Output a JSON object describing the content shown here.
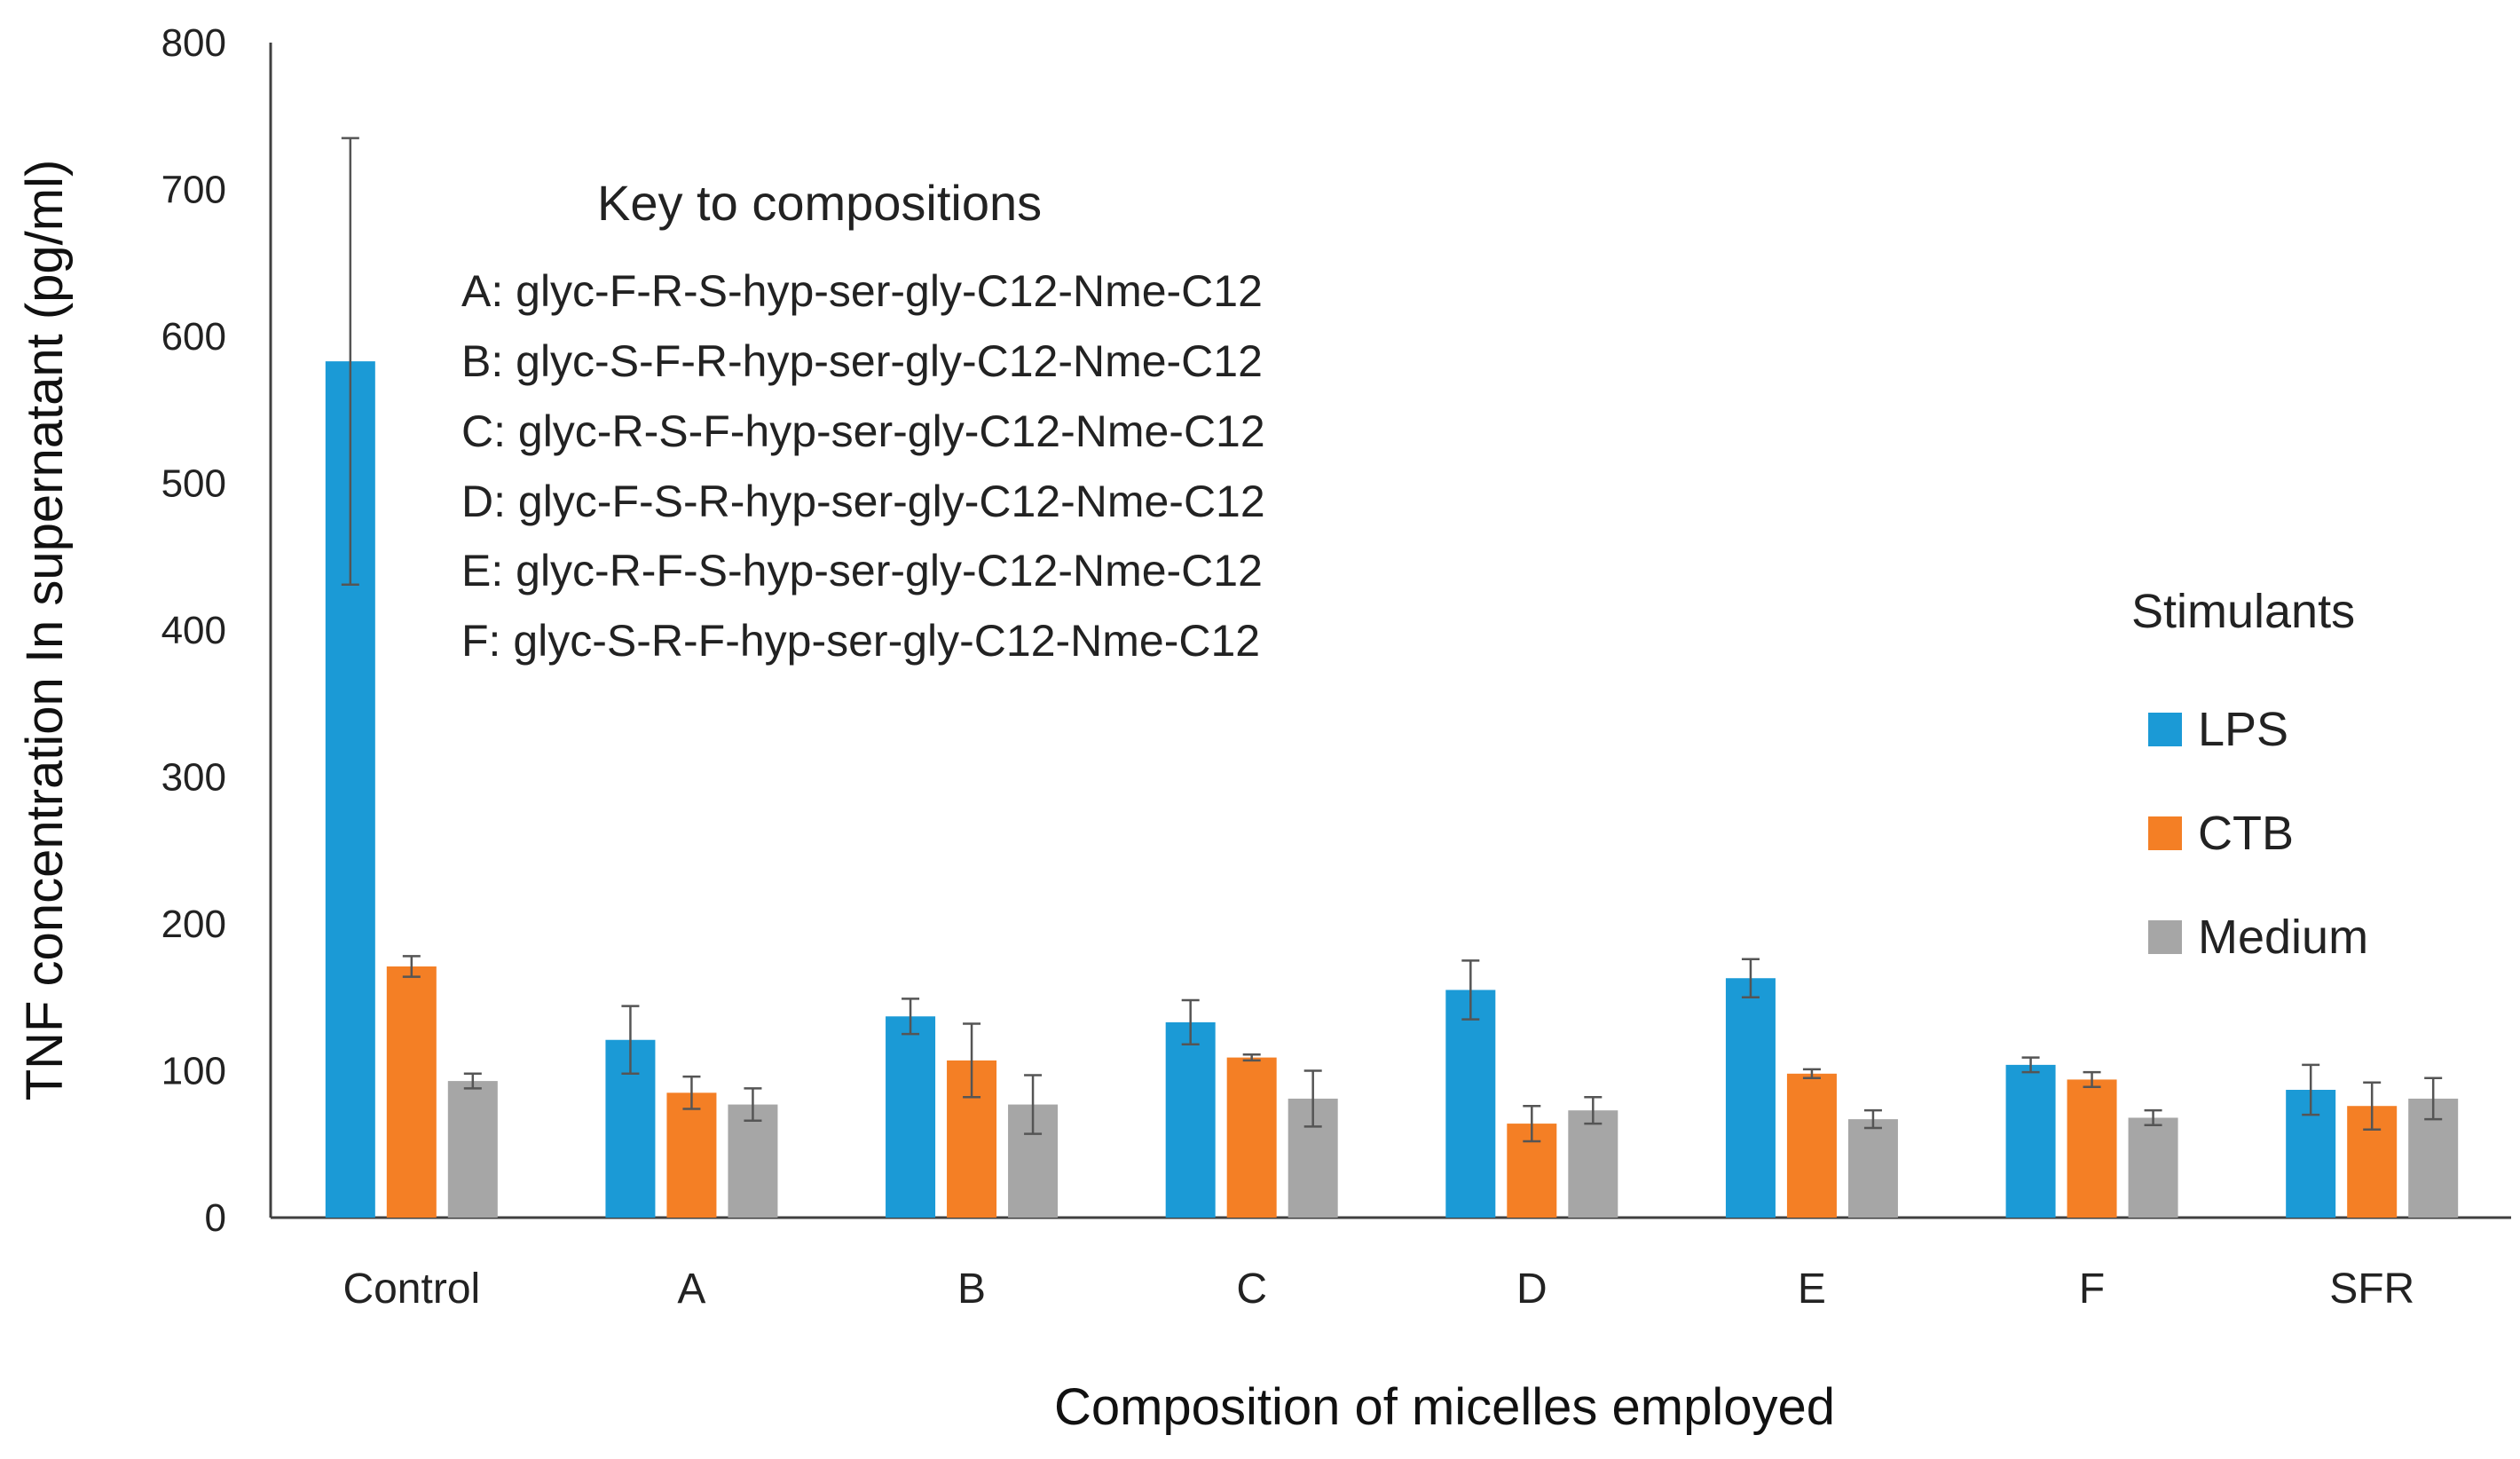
{
  "chart_data": {
    "type": "bar",
    "title": "",
    "xlabel": "Composition of micelles employed",
    "ylabel": "TNF concentration In supernatant  (pg/ml)",
    "ylim": [
      0,
      800
    ],
    "yticks": [
      0,
      100,
      200,
      300,
      400,
      500,
      600,
      700,
      800
    ],
    "grid": false,
    "legend_position": "right",
    "categories": [
      "Control",
      "A",
      "B",
      "C",
      "D",
      "E",
      "F",
      "SFR"
    ],
    "series": [
      {
        "name": "LPS",
        "color": "#1b9ad6",
        "values": [
          583,
          121,
          137,
          133,
          155,
          163,
          104,
          87
        ],
        "errors": [
          152,
          23,
          12,
          15,
          20,
          13,
          5,
          17
        ]
      },
      {
        "name": "CTB",
        "color": "#f47f25",
        "values": [
          171,
          85,
          107,
          109,
          64,
          98,
          94,
          76
        ],
        "errors": [
          7,
          11,
          25,
          2,
          12,
          3,
          5,
          16
        ]
      },
      {
        "name": "Medium",
        "color": "#a6a6a6",
        "values": [
          93,
          77,
          77,
          81,
          73,
          67,
          68,
          81
        ],
        "errors": [
          5,
          11,
          20,
          19,
          9,
          6,
          5,
          14
        ]
      }
    ],
    "legend_title": "Stimulants",
    "key": {
      "title": "Key to compositions",
      "lines": [
        "A:  glyc-F-R-S-hyp-ser-gly-C12-Nme-C12",
        "B:  glyc-S-F-R-hyp-ser-gly-C12-Nme-C12",
        "C:  glyc-R-S-F-hyp-ser-gly-C12-Nme-C12",
        "D:  glyc-F-S-R-hyp-ser-gly-C12-Nme-C12",
        "E:  glyc-R-F-S-hyp-ser-gly-C12-Nme-C12",
        "F:  glyc-S-R-F-hyp-ser-gly-C12-Nme-C12"
      ]
    }
  }
}
